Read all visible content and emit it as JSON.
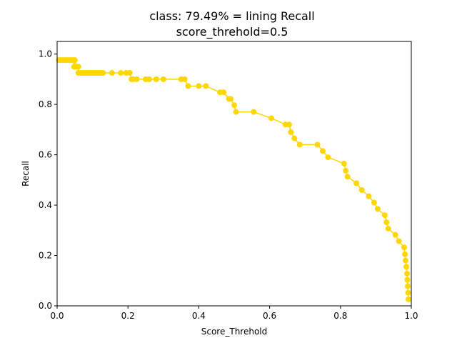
{
  "chart_data": {
    "type": "line",
    "title": "class: 79.49% = lining Recall",
    "subtitle": "score_threhold=0.5",
    "xlabel": "Score_Threhold",
    "ylabel": "Recall",
    "xlim": [
      0.0,
      1.0
    ],
    "ylim": [
      0.0,
      1.05
    ],
    "xticks": [
      "0.0",
      "0.2",
      "0.4",
      "0.6",
      "0.8",
      "1.0"
    ],
    "yticks": [
      "0.0",
      "0.2",
      "0.4",
      "0.6",
      "0.8",
      "1.0"
    ],
    "grid": false,
    "series": [
      {
        "color": "#ffd700",
        "marker": "circle",
        "x": [
          0.005,
          0.01,
          0.015,
          0.02,
          0.025,
          0.03,
          0.035,
          0.04,
          0.045,
          0.048,
          0.05,
          0.055,
          0.06,
          0.06,
          0.065,
          0.07,
          0.075,
          0.08,
          0.085,
          0.09,
          0.095,
          0.1,
          0.105,
          0.11,
          0.115,
          0.12,
          0.125,
          0.13,
          0.155,
          0.18,
          0.195,
          0.205,
          0.21,
          0.215,
          0.225,
          0.25,
          0.26,
          0.28,
          0.3,
          0.35,
          0.36,
          0.37,
          0.4,
          0.42,
          0.46,
          0.47,
          0.485,
          0.49,
          0.5,
          0.505,
          0.555,
          0.605,
          0.645,
          0.655,
          0.66,
          0.67,
          0.685,
          0.735,
          0.75,
          0.765,
          0.81,
          0.815,
          0.82,
          0.845,
          0.86,
          0.88,
          0.895,
          0.905,
          0.925,
          0.93,
          0.935,
          0.955,
          0.965,
          0.98,
          0.982,
          0.984,
          0.986,
          0.988,
          0.989,
          0.99,
          0.991,
          0.992
        ],
        "y": [
          0.976,
          0.976,
          0.976,
          0.976,
          0.976,
          0.976,
          0.976,
          0.976,
          0.976,
          0.95,
          0.976,
          0.95,
          0.95,
          0.925,
          0.925,
          0.925,
          0.925,
          0.925,
          0.925,
          0.925,
          0.925,
          0.925,
          0.925,
          0.925,
          0.925,
          0.925,
          0.925,
          0.925,
          0.925,
          0.925,
          0.925,
          0.925,
          0.9,
          0.9,
          0.9,
          0.9,
          0.9,
          0.9,
          0.9,
          0.9,
          0.9,
          0.873,
          0.873,
          0.873,
          0.848,
          0.848,
          0.822,
          0.822,
          0.797,
          0.77,
          0.77,
          0.745,
          0.72,
          0.72,
          0.69,
          0.665,
          0.64,
          0.64,
          0.615,
          0.59,
          0.565,
          0.537,
          0.513,
          0.487,
          0.46,
          0.435,
          0.41,
          0.385,
          0.36,
          0.332,
          0.307,
          0.282,
          0.257,
          0.232,
          0.205,
          0.18,
          0.155,
          0.128,
          0.103,
          0.078,
          0.052,
          0.026
        ]
      }
    ]
  }
}
